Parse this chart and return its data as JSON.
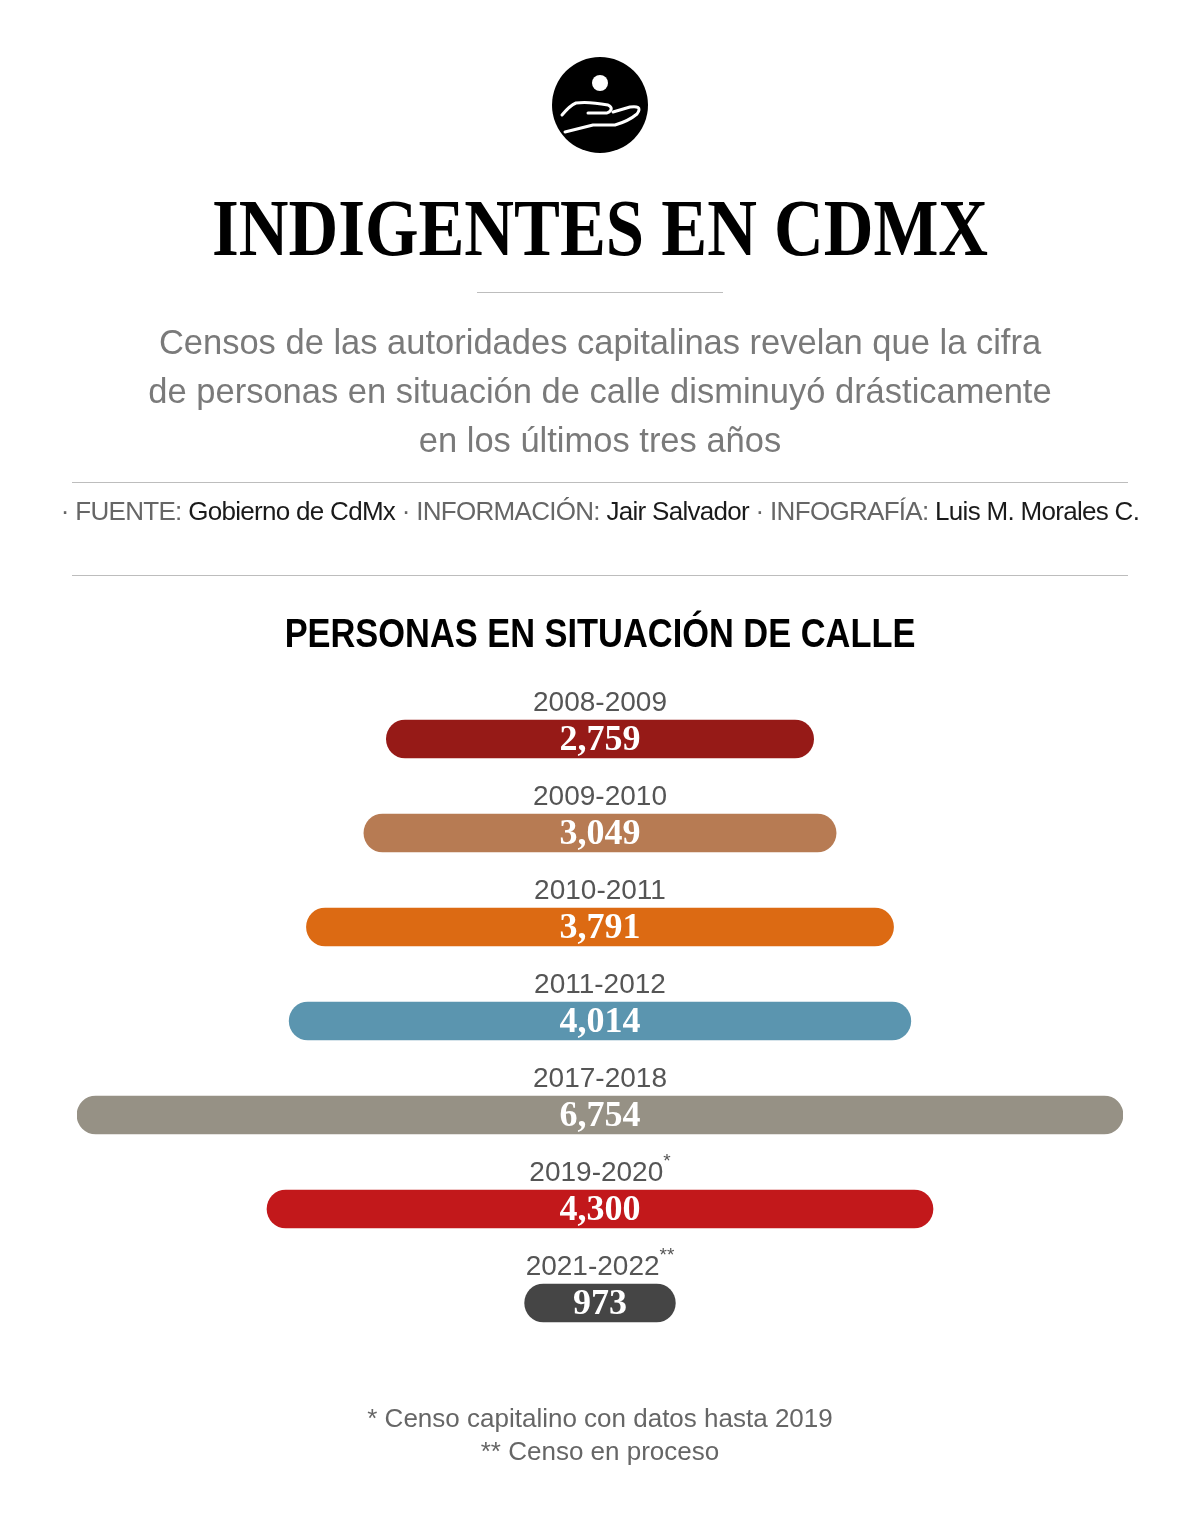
{
  "chart_data": {
    "type": "other",
    "title": "INDIGENTES EN CDMX",
    "subtitle": "Censos de las autoridades capitalinas revelan que la cifra de personas en situación de calle disminuyó drásticamente en los últimos tres años",
    "annotations": [
      "· FUENTE: Gobierno de CdMx · INFORMACIÓN: Jair Salvador · INFOGRAFÍA: Luis M. Morales C.",
      "PERSONAS EN SITUACIÓN DE CALLE",
      "* Censo capitalino con datos hasta 2019",
      "** Censo en proceso"
    ],
    "categories": [
      "2008-2009",
      "2009-2010",
      "2010-2011",
      "2011-2012",
      "2017-2018",
      "2019-2020$^{*}$",
      "2021-2022$^{**}$"
    ],
    "values": [
      2759,
      3049,
      3791,
      4014,
      6754,
      4300,
      973
    ],
    "value_labels": [
      "2,759",
      "3,049",
      "3,791",
      "4,014",
      "6,754",
      "4,300",
      "973"
    ],
    "colors": [
      "#961a17",
      "#b77b53",
      "#dc6a13",
      "#5b95af",
      "#969185",
      "#c2181b",
      "#454545"
    ]
  }
}
